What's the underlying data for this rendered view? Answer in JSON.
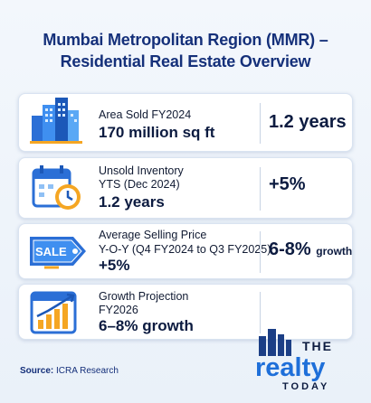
{
  "header": {
    "title_line1": "Mumbai Metropolitan Region (MMR) –",
    "title_line2": "Residential Real Estate Overview"
  },
  "cards": [
    {
      "label_line1": "Area Sold FY2024",
      "value": "170 million sq ft",
      "right": "1.2 years",
      "icon": "buildings-icon"
    },
    {
      "label_line1": "Unsold Inventory",
      "label_line2": "YTS (Dec 2024)",
      "value": "1.2 years",
      "right": "+5%",
      "icon": "calendar-clock-icon"
    },
    {
      "label_line1": "Average Selling Price",
      "label_line2": "Y-O-Y (Q4 FY2024 to Q3 FY2025)",
      "value": "+5%",
      "right_main": "6-8%",
      "right_small": "growth",
      "icon": "sale-tag-icon"
    },
    {
      "label_line1": "Growth Projection",
      "label_line2": "FY2026",
      "value": "6–8% growth",
      "icon": "growth-chart-icon"
    }
  ],
  "source": {
    "prefix": "Source:",
    "text": "ICRA Research"
  },
  "logo": {
    "the": "THE",
    "realty": "realty",
    "today": "TODAY"
  },
  "colors": {
    "title": "#15307a",
    "accent_blue": "#1e6fd9",
    "accent_orange": "#f39c1f"
  }
}
